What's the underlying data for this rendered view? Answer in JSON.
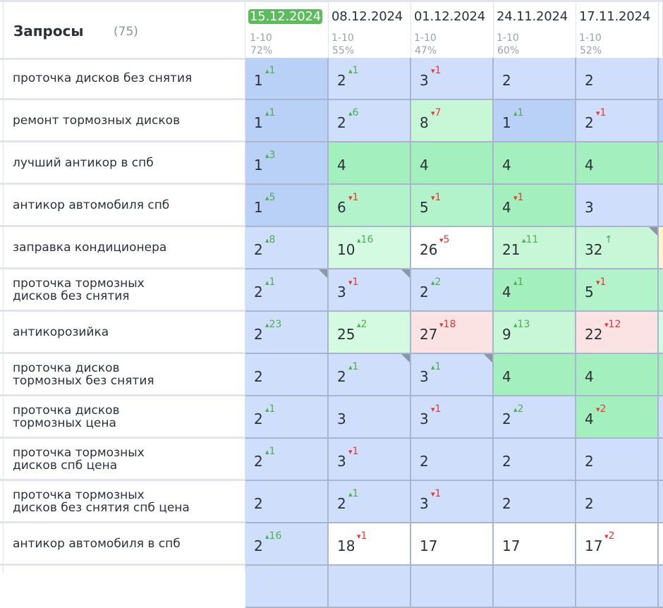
{
  "header": {
    "title": "Запросы",
    "count": "(75)"
  },
  "columns": [
    {
      "date": "15.12.2024",
      "range": "1-10",
      "pct": "72%",
      "current": true
    },
    {
      "date": "08.12.2024",
      "range": "1-10",
      "pct": "55%"
    },
    {
      "date": "01.12.2024",
      "range": "1-10",
      "pct": "47%"
    },
    {
      "date": "24.11.2024",
      "range": "1-10",
      "pct": "60%"
    },
    {
      "date": "17.11.2024",
      "range": "1-10",
      "pct": "52%"
    }
  ],
  "rows": [
    {
      "query": "проточка дисков без снятия",
      "cells": [
        {
          "v": "1",
          "d": "1",
          "dir": "up",
          "bg": "blue2"
        },
        {
          "v": "2",
          "d": "1",
          "dir": "up",
          "bg": "blue1"
        },
        {
          "v": "3",
          "d": "1",
          "dir": "down",
          "bg": "blue1"
        },
        {
          "v": "2",
          "bg": "blue1"
        },
        {
          "v": "2",
          "bg": "blue1"
        }
      ],
      "next_bg": "blue1"
    },
    {
      "query": "ремонт тормозных дисков",
      "cells": [
        {
          "v": "1",
          "d": "1",
          "dir": "up",
          "bg": "blue2"
        },
        {
          "v": "2",
          "d": "6",
          "dir": "up",
          "bg": "blue1"
        },
        {
          "v": "8",
          "d": "7",
          "dir": "down",
          "bg": "green1"
        },
        {
          "v": "1",
          "d": "1",
          "dir": "up",
          "bg": "blue2"
        },
        {
          "v": "2",
          "d": "1",
          "dir": "down",
          "bg": "blue1"
        }
      ],
      "next_bg": "blue2"
    },
    {
      "query": "лучший антикор в спб",
      "cells": [
        {
          "v": "1",
          "d": "3",
          "dir": "up",
          "bg": "blue2"
        },
        {
          "v": "4",
          "bg": "green3"
        },
        {
          "v": "4",
          "bg": "green3"
        },
        {
          "v": "4",
          "bg": "green3"
        },
        {
          "v": "4",
          "bg": "green3"
        }
      ],
      "next_bg": "green3"
    },
    {
      "query": "антикор автомобиля спб",
      "cells": [
        {
          "v": "1",
          "d": "5",
          "dir": "up",
          "bg": "blue2"
        },
        {
          "v": "6",
          "d": "1",
          "dir": "down",
          "bg": "green2"
        },
        {
          "v": "5",
          "d": "1",
          "dir": "down",
          "bg": "green2"
        },
        {
          "v": "4",
          "d": "1",
          "dir": "down",
          "bg": "green3"
        },
        {
          "v": "3",
          "bg": "blue1"
        }
      ],
      "next_bg": "blue1"
    },
    {
      "query": "заправка кондиционера",
      "cells": [
        {
          "v": "2",
          "d": "8",
          "dir": "up",
          "bg": "blue1"
        },
        {
          "v": "10",
          "d": "16",
          "dir": "up",
          "bg": "green0"
        },
        {
          "v": "26",
          "d": "5",
          "dir": "down",
          "bg": "white"
        },
        {
          "v": "21",
          "d": "11",
          "dir": "up",
          "bg": "green1"
        },
        {
          "v": "32",
          "d": "↑",
          "dir": "new",
          "bg": "green1",
          "note": true
        }
      ],
      "next_bg": "yellow"
    },
    {
      "query": "проточка тормозных\nдисков без снятия",
      "cells": [
        {
          "v": "2",
          "d": "1",
          "dir": "up",
          "bg": "blue1",
          "note": true
        },
        {
          "v": "3",
          "d": "1",
          "dir": "down",
          "bg": "blue1",
          "note": true
        },
        {
          "v": "2",
          "d": "2",
          "dir": "up",
          "bg": "blue1"
        },
        {
          "v": "4",
          "d": "1",
          "dir": "up",
          "bg": "green3"
        },
        {
          "v": "5",
          "d": "1",
          "dir": "down",
          "bg": "green2"
        }
      ],
      "next_bg": "green2"
    },
    {
      "query": "антикорозийка",
      "cells": [
        {
          "v": "2",
          "d": "23",
          "dir": "up",
          "bg": "blue1"
        },
        {
          "v": "25",
          "d": "2",
          "dir": "up",
          "bg": "green0"
        },
        {
          "v": "27",
          "d": "18",
          "dir": "down",
          "bg": "pink"
        },
        {
          "v": "9",
          "d": "13",
          "dir": "up",
          "bg": "green1"
        },
        {
          "v": "22",
          "d": "12",
          "dir": "down",
          "bg": "pink"
        }
      ],
      "next_bg": "green0"
    },
    {
      "query": "проточка дисков\nтормозных без снятия",
      "cells": [
        {
          "v": "2",
          "bg": "blue1"
        },
        {
          "v": "2",
          "d": "1",
          "dir": "up",
          "bg": "blue1",
          "note": true
        },
        {
          "v": "3",
          "d": "1",
          "dir": "up",
          "bg": "blue1",
          "note": true
        },
        {
          "v": "4",
          "bg": "green3"
        },
        {
          "v": "4",
          "bg": "green3"
        }
      ],
      "next_bg": "green3"
    },
    {
      "query": "проточка дисков\nтормозных цена",
      "cells": [
        {
          "v": "2",
          "d": "1",
          "dir": "up",
          "bg": "blue1"
        },
        {
          "v": "3",
          "bg": "blue1"
        },
        {
          "v": "3",
          "d": "1",
          "dir": "down",
          "bg": "blue1"
        },
        {
          "v": "2",
          "d": "2",
          "dir": "up",
          "bg": "blue1"
        },
        {
          "v": "4",
          "d": "2",
          "dir": "down",
          "bg": "green3"
        }
      ],
      "next_bg": "blue1"
    },
    {
      "query": "проточка тормозных\nдисков спб цена",
      "cells": [
        {
          "v": "2",
          "d": "1",
          "dir": "up",
          "bg": "blue1"
        },
        {
          "v": "3",
          "d": "1",
          "dir": "down",
          "bg": "blue1"
        },
        {
          "v": "2",
          "bg": "blue1"
        },
        {
          "v": "2",
          "bg": "blue1"
        },
        {
          "v": "2",
          "bg": "blue1"
        }
      ],
      "next_bg": "blue1"
    },
    {
      "query": "проточка тормозных\nдисков без снятия спб цена",
      "cells": [
        {
          "v": "2",
          "bg": "blue1"
        },
        {
          "v": "2",
          "d": "1",
          "dir": "up",
          "bg": "blue1"
        },
        {
          "v": "3",
          "d": "1",
          "dir": "down",
          "bg": "blue1"
        },
        {
          "v": "2",
          "bg": "blue1"
        },
        {
          "v": "2",
          "bg": "blue1"
        }
      ],
      "next_bg": "blue1"
    },
    {
      "query": "антикор автомобиля в спб",
      "cells": [
        {
          "v": "2",
          "d": "16",
          "dir": "up",
          "bg": "blue1"
        },
        {
          "v": "18",
          "d": "1",
          "dir": "down",
          "bg": "white"
        },
        {
          "v": "17",
          "bg": "white"
        },
        {
          "v": "17",
          "bg": "white"
        },
        {
          "v": "17",
          "d": "2",
          "dir": "down",
          "bg": "white"
        }
      ],
      "next_bg": "white"
    }
  ],
  "colors": {
    "current_date_badge": "#5cbb5c",
    "delta_up": "#4caf50",
    "delta_down": "#e53935",
    "top_blue": "#b9d0f7",
    "top10_blue": "#cfdefa",
    "green_strong": "#a3efbe",
    "pink": "#fbe3e3"
  }
}
